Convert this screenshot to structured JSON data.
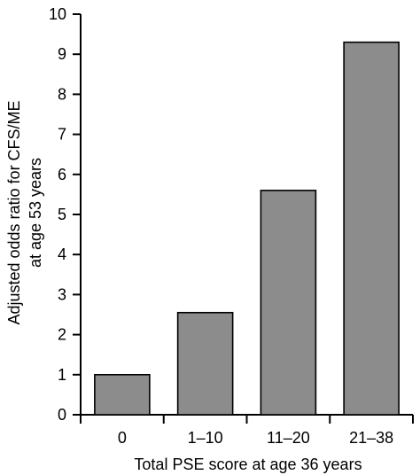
{
  "chart_data": {
    "type": "bar",
    "title": "",
    "categories": [
      "0",
      "1–10",
      "11–20",
      "21–38"
    ],
    "values": [
      1.0,
      2.55,
      5.6,
      9.3
    ],
    "xlabel": "Total PSE score at age 36 years",
    "ylabel_lines": [
      "Adjusted odds ratio for CFS/ME",
      "at age 53 years"
    ],
    "ylim": [
      0,
      10
    ],
    "yticks": [
      0,
      1,
      2,
      3,
      4,
      5,
      6,
      7,
      8,
      9,
      10
    ],
    "grid": false,
    "legend": "none",
    "bar_color": "#8c8c8c",
    "axis_color": "#000000"
  }
}
